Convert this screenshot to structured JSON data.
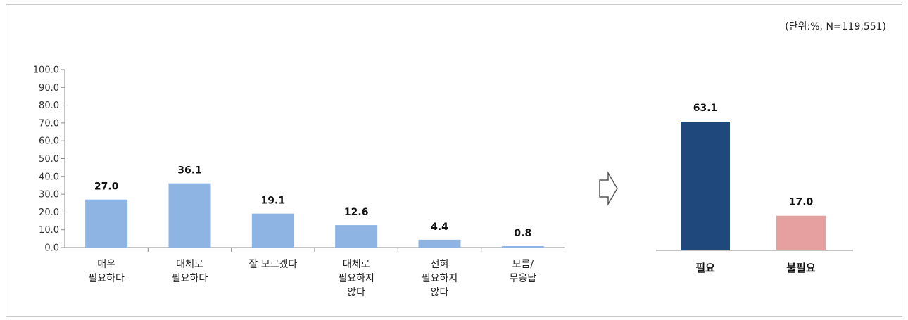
{
  "unit_note": "(단위:%, N=119,551)",
  "chart_data": [
    {
      "type": "bar",
      "categories": [
        "매우\n필요하다",
        "대체로\n필요하다",
        "잘 모르겠다",
        "대체로\n필요하지\n않다",
        "전혀\n필요하지\n않다",
        "모름/\n무응답"
      ],
      "values": [
        27.0,
        36.1,
        19.1,
        12.6,
        4.4,
        0.8
      ],
      "value_labels": [
        "27.0",
        "36.1",
        "19.1",
        "12.6",
        "4.4",
        "0.8"
      ],
      "y_ticks": [
        "0.0",
        "10.0",
        "20.0",
        "30.0",
        "40.0",
        "50.0",
        "60.0",
        "70.0",
        "80.0",
        "90.0",
        "100.0"
      ],
      "ylim": [
        0,
        100
      ],
      "grid": false,
      "color": "#8db4e2"
    },
    {
      "type": "bar",
      "categories": [
        "필요",
        "불필요"
      ],
      "values": [
        63.1,
        17.0
      ],
      "value_labels": [
        "63.1",
        "17.0"
      ],
      "colors": [
        "#1f497d",
        "#e6a0a0"
      ]
    }
  ],
  "arrow": "right-arrow-icon"
}
